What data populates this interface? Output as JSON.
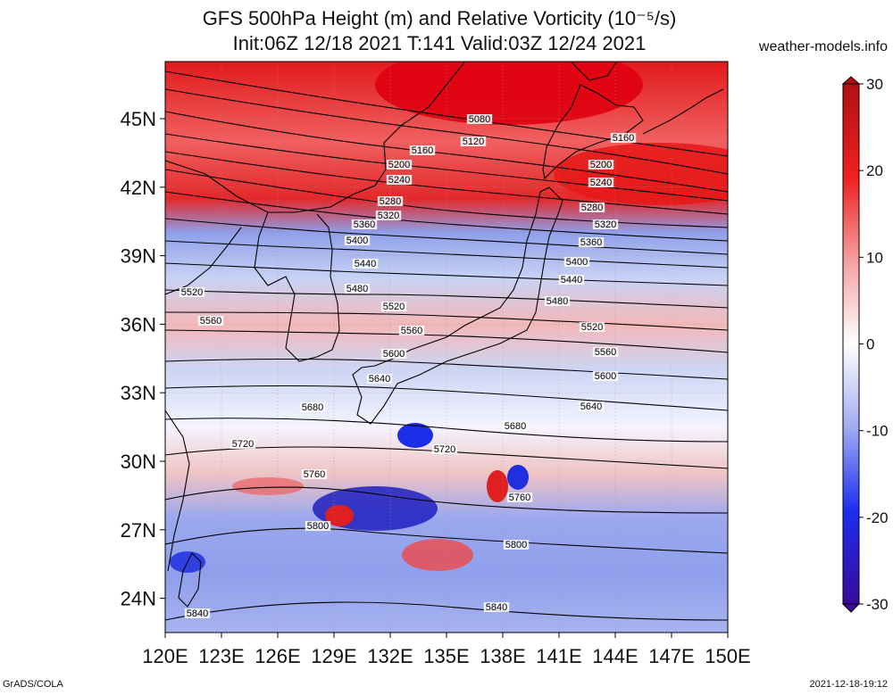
{
  "title_line1": "GFS 500hPa Height (m) and Relative Vorticity (10⁻⁵/s)",
  "title_line2": "Init:06Z 12/18 2021 T:141 Valid:03Z 12/24 2021",
  "site": "weather-models.info",
  "footer_left": "GrADS/COLA",
  "footer_right": "2021-12-18-19:12",
  "lat_labels": [
    "45N",
    "42N",
    "39N",
    "36N",
    "33N",
    "30N",
    "27N",
    "24N"
  ],
  "lat_values": [
    45,
    42,
    39,
    36,
    33,
    30,
    27,
    24
  ],
  "lon_labels": [
    "120E",
    "123E",
    "126E",
    "129E",
    "132E",
    "135E",
    "138E",
    "141E",
    "144E",
    "147E",
    "150E"
  ],
  "lon_values": [
    120,
    123,
    126,
    129,
    132,
    135,
    138,
    141,
    144,
    147,
    150
  ],
  "colorbar": {
    "ticks": [
      "30",
      "20",
      "10",
      "0",
      "-10",
      "-20",
      "-30"
    ],
    "values": [
      30,
      20,
      10,
      0,
      -10,
      -20,
      -30
    ]
  },
  "contour_labels": [
    "5080",
    "5120",
    "5160",
    "5160",
    "5200",
    "5200",
    "5240",
    "5240",
    "5280",
    "5280",
    "5320",
    "5320",
    "5360",
    "5360",
    "5400",
    "5400",
    "5440",
    "5440",
    "5480",
    "5480",
    "5520",
    "5520",
    "5520",
    "5560",
    "5560",
    "5560",
    "5600",
    "5600",
    "5640",
    "5640",
    "5680",
    "5680",
    "5720",
    "5720",
    "5760",
    "5760",
    "5800",
    "5800",
    "5840",
    "5840"
  ],
  "colors": {
    "vort_pos": "#e8141c",
    "vort_neg": "#2a3bd8",
    "vort_zero": "#ffffff"
  }
}
